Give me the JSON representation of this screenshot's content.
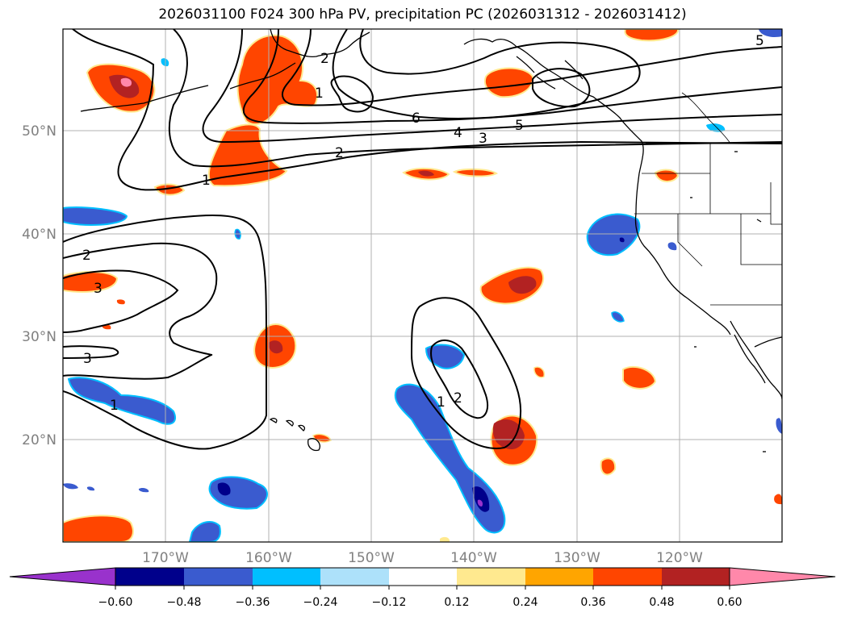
{
  "title": "2026031100 F024 300 hPa PV, precipitation PC (2026031312 - 2026031412)",
  "map": {
    "lat_labels": [
      "50°N",
      "40°N",
      "30°N",
      "20°N"
    ],
    "lon_labels": [
      "170°W",
      "160°W",
      "150°W",
      "140°W",
      "130°W",
      "120°W"
    ],
    "contour_labels": [
      "1",
      "2",
      "3",
      "4",
      "5",
      "6",
      "1",
      "2",
      "3",
      "2",
      "3",
      "1",
      "1",
      "2",
      "5"
    ]
  },
  "colorbar": {
    "ticks": [
      "−0.60",
      "−0.48",
      "−0.36",
      "−0.24",
      "−0.12",
      "0.12",
      "0.24",
      "0.36",
      "0.48",
      "0.60"
    ],
    "colors": {
      "lt_-0.60": "#9932CC",
      "-0.60_-0.48": "#00008B",
      "-0.48_-0.36": "#3A5BCF",
      "-0.36_-0.24": "#00BFFF",
      "-0.24_-0.12": "#ADE1FA",
      "-0.12_0.12": "#FFFFFF",
      "0.12_0.24": "#FFE98F",
      "0.24_0.36": "#FFA500",
      "0.36_0.48": "#FF4500",
      "0.48_0.60": "#B22222",
      "gt_0.60": "#FF88AA"
    }
  }
}
